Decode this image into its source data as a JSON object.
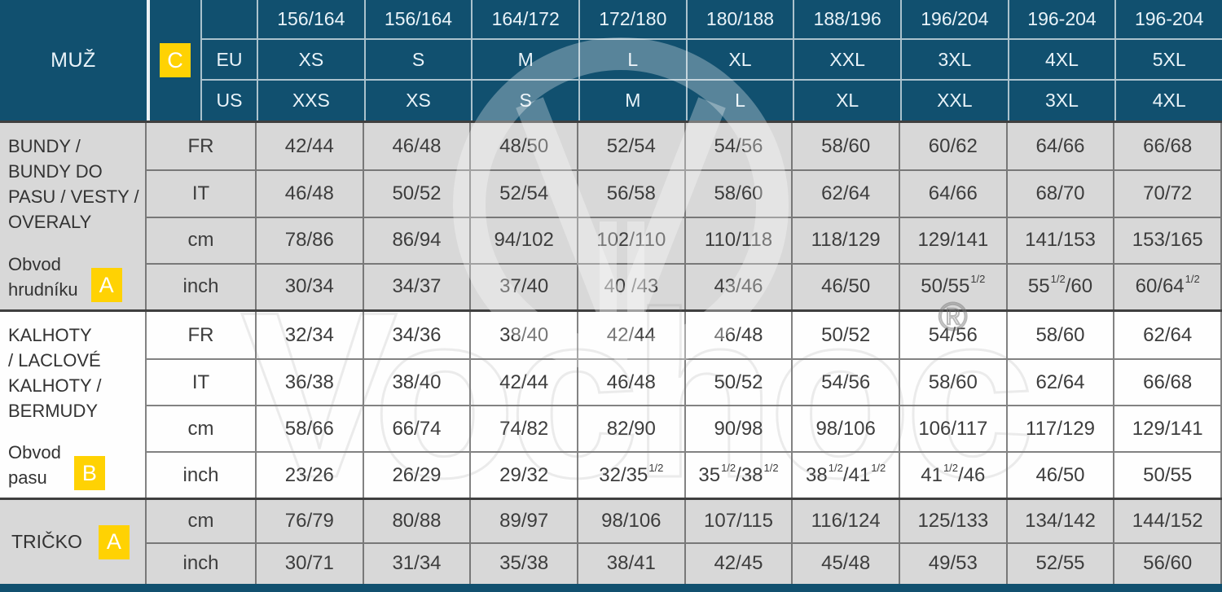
{
  "title": "MUŽ",
  "colors": {
    "header_navy": "#11506f",
    "header_text": "#e9f3f9",
    "badge_yellow": "#ffd203",
    "row_gray": "#d8d8d8",
    "row_white": "#fefefe",
    "text_dark": "#3d3d3d"
  },
  "header": {
    "c_badge": "C",
    "eu_label": "EU",
    "us_label": "US"
  },
  "watermark": {
    "text": "Vochoc",
    "registered_symbol": "®"
  },
  "chart_data": {
    "type": "table",
    "title": "MUŽ",
    "columns_height": [
      "156/164",
      "156/164",
      "164/172",
      "172/180",
      "180/188",
      "188/196",
      "196/204",
      "196-204",
      "196-204"
    ],
    "columns_eu": [
      "XS",
      "S",
      "M",
      "L",
      "XL",
      "XXL",
      "3XL",
      "4XL",
      "5XL"
    ],
    "columns_us": [
      "XXS",
      "XS",
      "S",
      "M",
      "L",
      "XL",
      "XXL",
      "3XL",
      "4XL"
    ],
    "row_groups": [
      {
        "category_lines": [
          "BUNDY /",
          "BUNDY DO",
          "PASU / VESTY /",
          "OVERALY"
        ],
        "measure_lines": [
          "Obvod",
          "hrudníku"
        ],
        "badge": "A",
        "shade": "gray",
        "rows": [
          {
            "unit": "FR",
            "values": [
              "42/44",
              "46/48",
              "48/50",
              "52/54",
              "54/56",
              "58/60",
              "60/62",
              "64/66",
              "66/68"
            ]
          },
          {
            "unit": "IT",
            "values": [
              "46/48",
              "50/52",
              "52/54",
              "56/58",
              "58/60",
              "62/64",
              "64/66",
              "68/70",
              "70/72"
            ]
          },
          {
            "unit": "cm",
            "values": [
              "78/86",
              "86/94",
              "94/102",
              "102/110",
              "110/118",
              "118/129",
              "129/141",
              "141/153",
              "153/165"
            ]
          },
          {
            "unit": "inch",
            "values": [
              "30/34",
              "34/37",
              "37/40",
              "40 /43",
              "43/46",
              "46/50",
              "50/55½",
              "55½/60",
              "60/64½"
            ]
          }
        ]
      },
      {
        "category_lines": [
          "KALHOTY",
          "/ LACLOVÉ",
          "KALHOTY /",
          "BERMUDY"
        ],
        "measure_lines": [
          "Obvod",
          "pasu"
        ],
        "badge": "B",
        "shade": "white",
        "rows": [
          {
            "unit": "FR",
            "values": [
              "32/34",
              "34/36",
              "38/40",
              "42/44",
              "46/48",
              "50/52",
              "54/56",
              "58/60",
              "62/64"
            ]
          },
          {
            "unit": "IT",
            "values": [
              "36/38",
              "38/40",
              "42/44",
              "46/48",
              "50/52",
              "54/56",
              "58/60",
              "62/64",
              "66/68"
            ]
          },
          {
            "unit": "cm",
            "values": [
              "58/66",
              "66/74",
              "74/82",
              "82/90",
              "90/98",
              "98/106",
              "106/117",
              "117/129",
              "129/141"
            ]
          },
          {
            "unit": "inch",
            "values": [
              "23/26",
              "26/29",
              "29/32",
              "32/35½",
              "35½/38½",
              "38½/41½",
              "41½/46",
              "46/50",
              "50/55"
            ]
          }
        ]
      },
      {
        "category_lines": [
          "TRIČKO"
        ],
        "measure_lines": [],
        "badge": "A",
        "shade": "gray",
        "rows": [
          {
            "unit": "cm",
            "values": [
              "76/79",
              "80/88",
              "89/97",
              "98/106",
              "107/115",
              "116/124",
              "125/133",
              "134/142",
              "144/152"
            ]
          },
          {
            "unit": "inch",
            "values": [
              "30/71",
              "31/34",
              "35/38",
              "38/41",
              "42/45",
              "45/48",
              "49/53",
              "52/55",
              "56/60"
            ]
          }
        ]
      }
    ]
  }
}
